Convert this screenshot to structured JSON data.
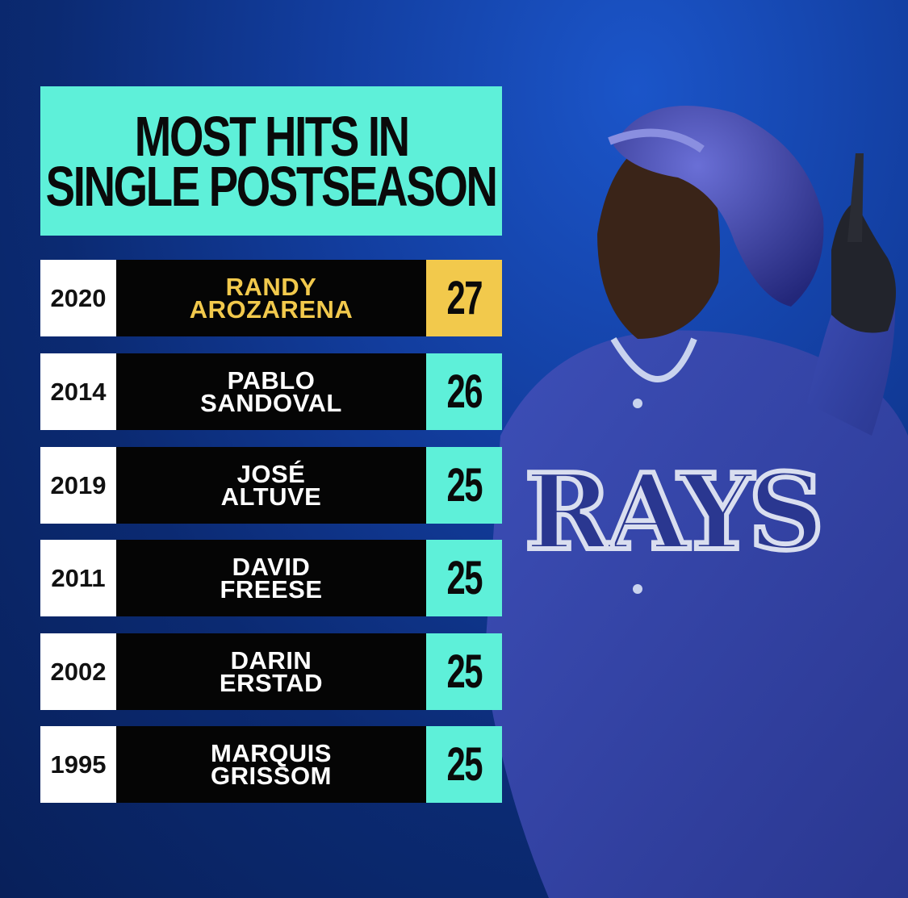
{
  "title": {
    "line1": "MOST HITS IN",
    "line2": "SINGLE POSTSEASON"
  },
  "colors": {
    "accent_teal": "#5ef0d9",
    "accent_gold": "#f2c94c",
    "row_black": "#050505",
    "year_white": "#ffffff",
    "background_blue": "#123d9e"
  },
  "chart_data": {
    "type": "table",
    "title": "MOST HITS IN SINGLE POSTSEASON",
    "rows": [
      {
        "year": "2020",
        "first": "RANDY",
        "last": "AROZARENA",
        "hits": 27,
        "highlight": true
      },
      {
        "year": "2014",
        "first": "PABLO",
        "last": "SANDOVAL",
        "hits": 26,
        "highlight": false
      },
      {
        "year": "2019",
        "first": "JOSÉ",
        "last": "ALTUVE",
        "hits": 25,
        "highlight": false
      },
      {
        "year": "2011",
        "first": "DAVID",
        "last": "FREESE",
        "hits": 25,
        "highlight": false
      },
      {
        "year": "2002",
        "first": "DARIN",
        "last": "ERSTAD",
        "hits": 25,
        "highlight": false
      },
      {
        "year": "1995",
        "first": "MARQUIS",
        "last": "GRISSOM",
        "hits": 25,
        "highlight": false
      }
    ]
  },
  "player_image": {
    "description_icon": "baseball-player-photo",
    "jersey_text": "RAYS"
  }
}
